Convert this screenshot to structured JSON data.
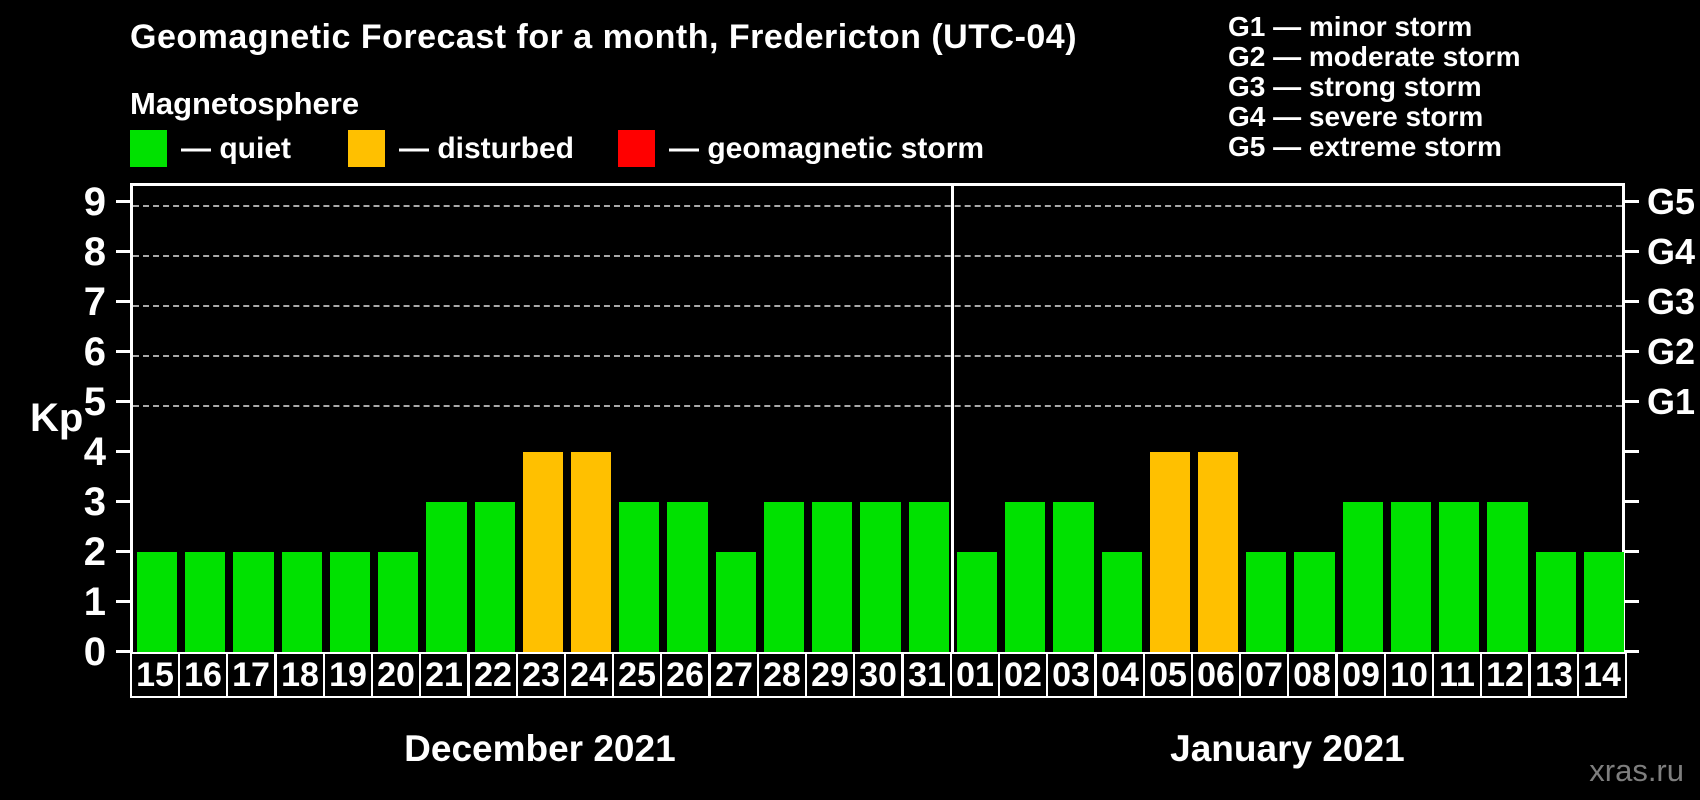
{
  "header": {
    "title": "Geomagnetic Forecast for a month, Fredericton (UTC-04)",
    "subtitle": "Magnetosphere"
  },
  "legend": {
    "items": [
      {
        "key": "quiet",
        "label": "— quiet",
        "color": "#00E100",
        "x": 0
      },
      {
        "key": "disturbed",
        "label": "— disturbed",
        "color": "#FFC000",
        "x": 218
      },
      {
        "key": "storm",
        "label": "— geomagnetic storm",
        "color": "#FF0000",
        "x": 488
      }
    ]
  },
  "g_legend": {
    "items": [
      "G1 — minor storm",
      "G2 — moderate storm",
      "G3 — strong storm",
      "G4 — severe storm",
      "G5 — extreme storm"
    ]
  },
  "watermark": "xras.ru",
  "chart_data": {
    "type": "bar",
    "title": "Geomagnetic Forecast for a month, Fredericton (UTC-04)",
    "ylabel": "Kp",
    "ylim": [
      0,
      9.4
    ],
    "yticks": [
      0,
      1,
      2,
      3,
      4,
      5,
      6,
      7,
      8,
      9
    ],
    "grid": "horizontal dashed lines at Kp 5-9 (G1-G5 levels)",
    "right_axis_labels": [
      {
        "value": 5,
        "label": "G1"
      },
      {
        "value": 6,
        "label": "G2"
      },
      {
        "value": 7,
        "label": "G3"
      },
      {
        "value": 8,
        "label": "G4"
      },
      {
        "value": 9,
        "label": "G5"
      }
    ],
    "status_colors": {
      "quiet": "#00E100",
      "disturbed": "#FFC000",
      "storm": "#FF0000"
    },
    "months": [
      {
        "label": "December 2021",
        "days": [
          "15",
          "16",
          "17",
          "18",
          "19",
          "20",
          "21",
          "22",
          "23",
          "24",
          "25",
          "26",
          "27",
          "28",
          "29",
          "30",
          "31"
        ],
        "values": [
          2,
          2,
          2,
          2,
          2,
          2,
          3,
          3,
          4,
          4,
          3,
          3,
          2,
          3,
          3,
          3,
          3
        ],
        "status": [
          "quiet",
          "quiet",
          "quiet",
          "quiet",
          "quiet",
          "quiet",
          "quiet",
          "quiet",
          "disturbed",
          "disturbed",
          "quiet",
          "quiet",
          "quiet",
          "quiet",
          "quiet",
          "quiet",
          "quiet"
        ]
      },
      {
        "label": "January 2021",
        "days": [
          "01",
          "02",
          "03",
          "04",
          "05",
          "06",
          "07",
          "08",
          "09",
          "10",
          "11",
          "12",
          "13",
          "14"
        ],
        "values": [
          2,
          3,
          3,
          2,
          4,
          4,
          2,
          2,
          3,
          3,
          3,
          3,
          2,
          2
        ],
        "status": [
          "quiet",
          "quiet",
          "quiet",
          "quiet",
          "disturbed",
          "disturbed",
          "quiet",
          "quiet",
          "quiet",
          "quiet",
          "quiet",
          "quiet",
          "quiet",
          "quiet"
        ]
      }
    ]
  }
}
